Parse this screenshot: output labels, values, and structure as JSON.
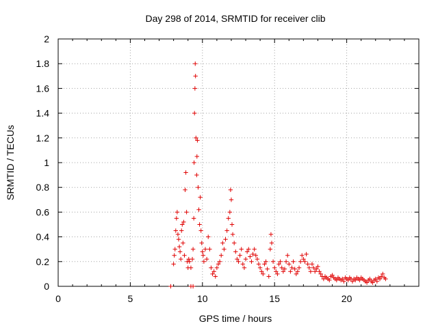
{
  "chart_data": {
    "type": "scatter",
    "title": "Day 298 of 2014, SRMTID for receiver clib",
    "xlabel": "GPS time / hours",
    "ylabel": "SRMTID / TECUs",
    "xlim": [
      0,
      25
    ],
    "ylim": [
      0,
      2
    ],
    "xticks": [
      0,
      5,
      10,
      15,
      20
    ],
    "yticks": [
      0,
      0.2,
      0.4,
      0.6,
      0.8,
      1,
      1.2,
      1.4,
      1.6,
      1.8,
      2
    ],
    "xtick_labels": [
      "0",
      "5",
      "10",
      "15",
      "20"
    ],
    "ytick_labels": [
      "0",
      "0.2",
      "0.4",
      "0.6",
      "0.8",
      "1",
      "1.2",
      "1.4",
      "1.6",
      "1.8",
      "2"
    ],
    "grid": true,
    "marker": "+",
    "color": "#e00000",
    "series": [
      {
        "name": "SRMTID",
        "points": [
          [
            7.8,
            0.0
          ],
          [
            9.2,
            0.0
          ],
          [
            9.35,
            0.0
          ],
          [
            8.0,
            0.18
          ],
          [
            8.05,
            0.25
          ],
          [
            8.1,
            0.3
          ],
          [
            8.15,
            0.45
          ],
          [
            8.2,
            0.55
          ],
          [
            8.25,
            0.6
          ],
          [
            8.3,
            0.42
          ],
          [
            8.35,
            0.38
          ],
          [
            8.4,
            0.32
          ],
          [
            8.45,
            0.28
          ],
          [
            8.5,
            0.22
          ],
          [
            8.55,
            0.45
          ],
          [
            8.6,
            0.5
          ],
          [
            8.65,
            0.35
          ],
          [
            8.7,
            0.52
          ],
          [
            8.75,
            0.25
          ],
          [
            8.8,
            0.78
          ],
          [
            8.85,
            0.92
          ],
          [
            8.9,
            0.6
          ],
          [
            8.95,
            0.2
          ],
          [
            9.0,
            0.15
          ],
          [
            9.05,
            0.22
          ],
          [
            9.1,
            0.2
          ],
          [
            9.2,
            0.15
          ],
          [
            9.3,
            0.22
          ],
          [
            9.35,
            0.3
          ],
          [
            9.4,
            0.55
          ],
          [
            9.42,
            1.0
          ],
          [
            9.45,
            1.4
          ],
          [
            9.48,
            1.6
          ],
          [
            9.5,
            1.8
          ],
          [
            9.52,
            1.7
          ],
          [
            9.55,
            1.2
          ],
          [
            9.6,
            0.9
          ],
          [
            9.62,
            1.05
          ],
          [
            9.65,
            1.18
          ],
          [
            9.7,
            0.8
          ],
          [
            9.75,
            0.62
          ],
          [
            9.8,
            0.5
          ],
          [
            9.85,
            0.72
          ],
          [
            9.9,
            0.45
          ],
          [
            9.95,
            0.35
          ],
          [
            10.0,
            0.28
          ],
          [
            10.05,
            0.25
          ],
          [
            10.1,
            0.2
          ],
          [
            10.2,
            0.3
          ],
          [
            10.3,
            0.22
          ],
          [
            10.4,
            0.4
          ],
          [
            10.5,
            0.3
          ],
          [
            10.6,
            0.15
          ],
          [
            10.7,
            0.1
          ],
          [
            10.8,
            0.12
          ],
          [
            10.9,
            0.08
          ],
          [
            11.0,
            0.15
          ],
          [
            11.1,
            0.18
          ],
          [
            11.2,
            0.2
          ],
          [
            11.3,
            0.25
          ],
          [
            11.4,
            0.35
          ],
          [
            11.5,
            0.3
          ],
          [
            11.6,
            0.38
          ],
          [
            11.7,
            0.45
          ],
          [
            11.8,
            0.55
          ],
          [
            11.9,
            0.6
          ],
          [
            11.95,
            0.78
          ],
          [
            12.0,
            0.7
          ],
          [
            12.05,
            0.5
          ],
          [
            12.1,
            0.42
          ],
          [
            12.2,
            0.35
          ],
          [
            12.3,
            0.28
          ],
          [
            12.4,
            0.22
          ],
          [
            12.5,
            0.2
          ],
          [
            12.6,
            0.25
          ],
          [
            12.7,
            0.3
          ],
          [
            12.8,
            0.18
          ],
          [
            12.9,
            0.15
          ],
          [
            13.0,
            0.22
          ],
          [
            13.1,
            0.28
          ],
          [
            13.2,
            0.3
          ],
          [
            13.3,
            0.24
          ],
          [
            13.4,
            0.2
          ],
          [
            13.5,
            0.26
          ],
          [
            13.6,
            0.3
          ],
          [
            13.7,
            0.25
          ],
          [
            13.8,
            0.22
          ],
          [
            13.9,
            0.18
          ],
          [
            14.0,
            0.15
          ],
          [
            14.1,
            0.12
          ],
          [
            14.2,
            0.1
          ],
          [
            14.3,
            0.18
          ],
          [
            14.4,
            0.2
          ],
          [
            14.5,
            0.14
          ],
          [
            14.6,
            0.08
          ],
          [
            14.7,
            0.3
          ],
          [
            14.75,
            0.42
          ],
          [
            14.8,
            0.35
          ],
          [
            14.9,
            0.2
          ],
          [
            15.0,
            0.15
          ],
          [
            15.1,
            0.12
          ],
          [
            15.2,
            0.1
          ],
          [
            15.3,
            0.18
          ],
          [
            15.4,
            0.2
          ],
          [
            15.5,
            0.15
          ],
          [
            15.6,
            0.12
          ],
          [
            15.7,
            0.14
          ],
          [
            15.8,
            0.2
          ],
          [
            15.9,
            0.25
          ],
          [
            16.0,
            0.18
          ],
          [
            16.1,
            0.12
          ],
          [
            16.2,
            0.15
          ],
          [
            16.3,
            0.2
          ],
          [
            16.4,
            0.14
          ],
          [
            16.5,
            0.1
          ],
          [
            16.6,
            0.12
          ],
          [
            16.7,
            0.15
          ],
          [
            16.8,
            0.2
          ],
          [
            16.9,
            0.25
          ],
          [
            17.0,
            0.22
          ],
          [
            17.1,
            0.2
          ],
          [
            17.2,
            0.26
          ],
          [
            17.3,
            0.18
          ],
          [
            17.4,
            0.15
          ],
          [
            17.5,
            0.12
          ],
          [
            17.6,
            0.18
          ],
          [
            17.7,
            0.15
          ],
          [
            17.8,
            0.12
          ],
          [
            17.9,
            0.14
          ],
          [
            18.0,
            0.16
          ],
          [
            18.1,
            0.12
          ],
          [
            18.2,
            0.1
          ],
          [
            18.3,
            0.08
          ],
          [
            18.4,
            0.06
          ],
          [
            18.5,
            0.08
          ],
          [
            18.6,
            0.07
          ],
          [
            18.7,
            0.06
          ],
          [
            18.8,
            0.05
          ],
          [
            18.9,
            0.08
          ],
          [
            19.0,
            0.09
          ],
          [
            19.1,
            0.07
          ],
          [
            19.2,
            0.06
          ],
          [
            19.3,
            0.05
          ],
          [
            19.4,
            0.07
          ],
          [
            19.5,
            0.06
          ],
          [
            19.6,
            0.05
          ],
          [
            19.7,
            0.06
          ],
          [
            19.8,
            0.04
          ],
          [
            19.9,
            0.07
          ],
          [
            20.0,
            0.06
          ],
          [
            20.1,
            0.05
          ],
          [
            20.2,
            0.07
          ],
          [
            20.3,
            0.06
          ],
          [
            20.4,
            0.04
          ],
          [
            20.5,
            0.06
          ],
          [
            20.6,
            0.05
          ],
          [
            20.7,
            0.07
          ],
          [
            20.8,
            0.06
          ],
          [
            20.9,
            0.05
          ],
          [
            21.0,
            0.07
          ],
          [
            21.1,
            0.06
          ],
          [
            21.2,
            0.05
          ],
          [
            21.3,
            0.04
          ],
          [
            21.4,
            0.03
          ],
          [
            21.5,
            0.05
          ],
          [
            21.6,
            0.06
          ],
          [
            21.7,
            0.04
          ],
          [
            21.8,
            0.03
          ],
          [
            21.9,
            0.05
          ],
          [
            22.0,
            0.06
          ],
          [
            22.1,
            0.04
          ],
          [
            22.2,
            0.07
          ],
          [
            22.3,
            0.06
          ],
          [
            22.4,
            0.08
          ],
          [
            22.5,
            0.1
          ],
          [
            22.6,
            0.07
          ],
          [
            22.7,
            0.06
          ]
        ]
      }
    ]
  }
}
